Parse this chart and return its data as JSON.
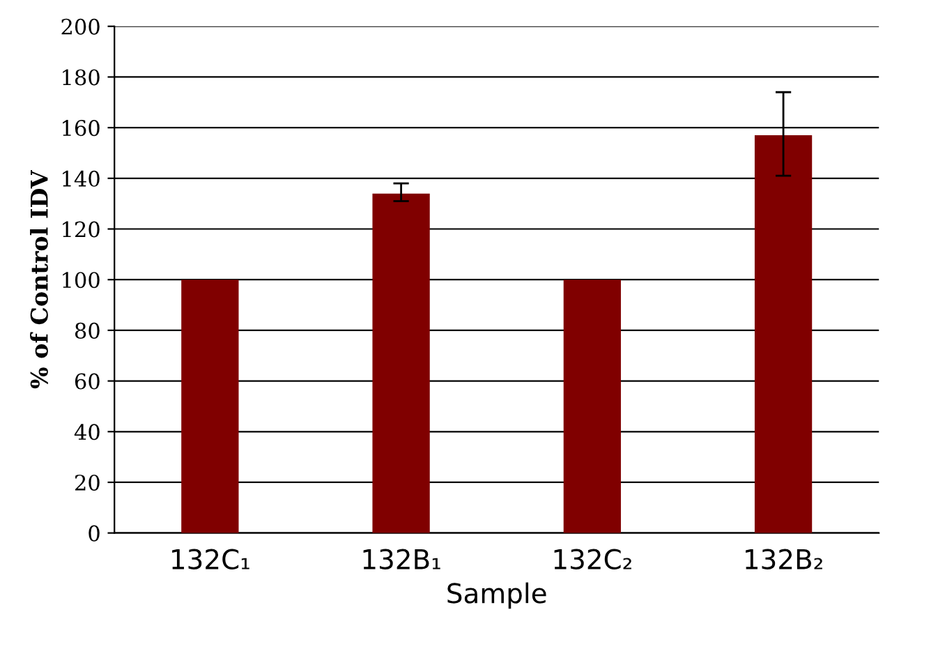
{
  "chart_data": {
    "type": "bar",
    "xlabel": "Sample",
    "ylabel": "% of Control IDV",
    "categories": [
      "132C₁",
      "132B₁",
      "132C₂",
      "132B₂"
    ],
    "values": [
      100,
      134,
      100,
      157
    ],
    "errors": [
      null,
      [
        131,
        138
      ],
      null,
      [
        141,
        174
      ]
    ],
    "color": "#800000",
    "ylim": [
      0,
      200
    ],
    "yticks": [
      0,
      20,
      40,
      60,
      80,
      100,
      120,
      140,
      160,
      180,
      200
    ],
    "grid": "y",
    "legend": false
  }
}
